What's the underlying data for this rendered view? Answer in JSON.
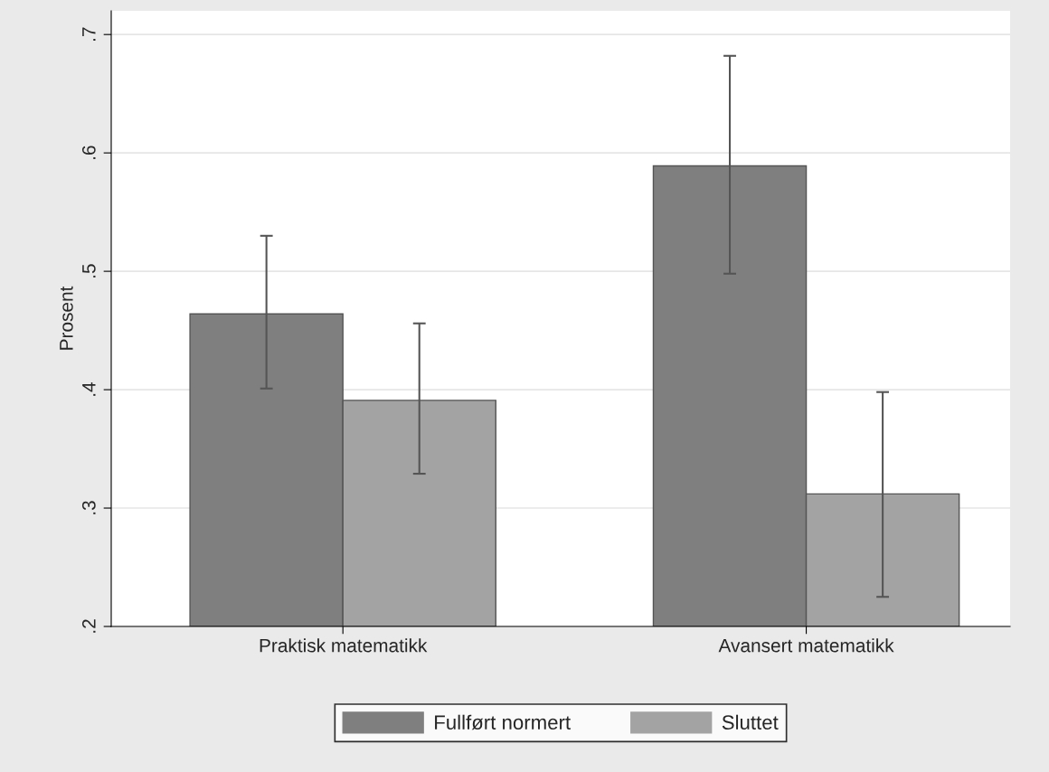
{
  "chart_data": {
    "type": "bar",
    "ylabel": "Prosent",
    "categories": [
      "Praktisk matematikk",
      "Avansert matematikk"
    ],
    "series": [
      {
        "name": "Fullført normert",
        "color": "#7f7f7f",
        "values": [
          0.464,
          0.589
        ],
        "errors": [
          [
            0.401,
            0.53
          ],
          [
            0.498,
            0.682
          ]
        ]
      },
      {
        "name": "Sluttet",
        "color": "#a3a3a3",
        "values": [
          0.391,
          0.312
        ],
        "errors": [
          [
            0.329,
            0.456
          ],
          [
            0.225,
            0.398
          ]
        ]
      }
    ],
    "ylim": [
      0.2,
      0.72
    ],
    "yticks": [
      {
        "value": 0.2,
        "label": ".2"
      },
      {
        "value": 0.3,
        "label": ".3"
      },
      {
        "value": 0.4,
        "label": ".4"
      },
      {
        "value": 0.5,
        "label": ".5"
      },
      {
        "value": 0.6,
        "label": ".6"
      },
      {
        "value": 0.7,
        "label": ".7"
      }
    ],
    "grid": "y",
    "legend": "bottom"
  }
}
